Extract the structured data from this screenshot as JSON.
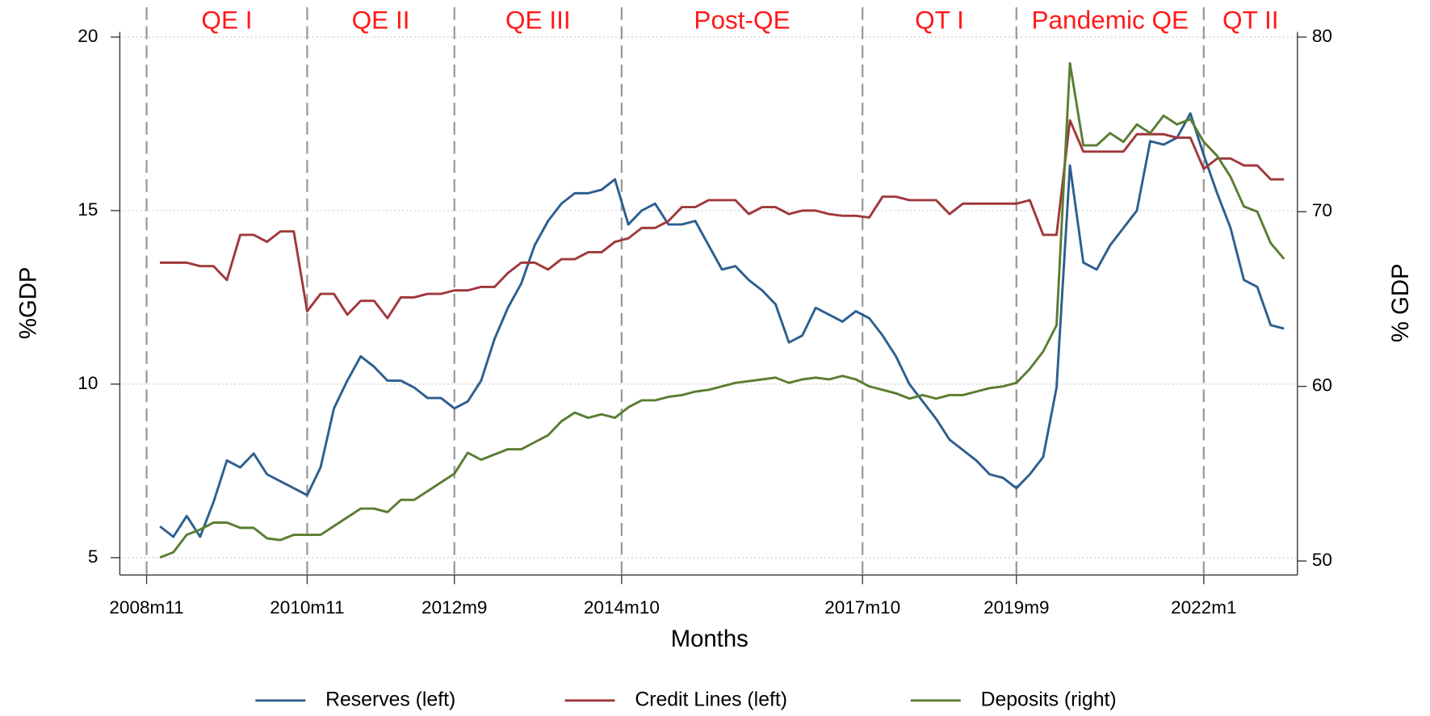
{
  "chart_data": {
    "type": "line",
    "x_label": "Months",
    "y_label": "%GDP",
    "y2_label": "% GDP",
    "x": [
      "2009m1",
      "2009m3",
      "2009m5",
      "2009m7",
      "2009m9",
      "2009m11",
      "2010m1",
      "2010m3",
      "2010m5",
      "2010m7",
      "2010m9",
      "2010m11",
      "2011m1",
      "2011m3",
      "2011m5",
      "2011m7",
      "2011m9",
      "2011m11",
      "2012m1",
      "2012m3",
      "2012m5",
      "2012m7",
      "2012m9",
      "2012m11",
      "2013m1",
      "2013m3",
      "2013m5",
      "2013m7",
      "2013m9",
      "2013m11",
      "2014m1",
      "2014m3",
      "2014m5",
      "2014m7",
      "2014m9",
      "2014m11",
      "2015m1",
      "2015m3",
      "2015m5",
      "2015m7",
      "2015m9",
      "2015m11",
      "2016m1",
      "2016m3",
      "2016m5",
      "2016m7",
      "2016m9",
      "2016m11",
      "2017m1",
      "2017m3",
      "2017m5",
      "2017m7",
      "2017m9",
      "2017m11",
      "2018m1",
      "2018m3",
      "2018m5",
      "2018m7",
      "2018m9",
      "2018m11",
      "2019m1",
      "2019m3",
      "2019m5",
      "2019m7",
      "2019m9",
      "2019m11",
      "2020m1",
      "2020m3",
      "2020m5",
      "2020m7",
      "2020m9",
      "2020m11",
      "2021m1",
      "2021m3",
      "2021m5",
      "2021m7",
      "2021m9",
      "2021m11",
      "2022m1",
      "2022m3",
      "2022m5",
      "2022m7",
      "2022m9",
      "2022m11",
      "2023m1"
    ],
    "series": [
      {
        "name": "Reserves (left)",
        "color": "#2d5f8e",
        "axis": "y",
        "values": [
          5.9,
          5.6,
          6.2,
          5.6,
          6.6,
          7.8,
          7.6,
          8.0,
          7.4,
          7.2,
          7.0,
          6.8,
          7.6,
          9.3,
          10.1,
          10.8,
          10.5,
          10.1,
          10.1,
          9.9,
          9.6,
          9.6,
          9.3,
          9.5,
          10.1,
          11.3,
          12.2,
          12.9,
          14.0,
          14.7,
          15.2,
          15.5,
          15.5,
          15.6,
          15.9,
          14.6,
          15.0,
          15.2,
          14.6,
          14.6,
          14.7,
          14.0,
          13.3,
          13.4,
          13.0,
          12.7,
          12.3,
          11.2,
          11.4,
          12.2,
          12.0,
          11.8,
          12.1,
          11.9,
          11.4,
          10.8,
          10.0,
          9.5,
          9.0,
          8.4,
          8.1,
          7.8,
          7.4,
          7.3,
          7.0,
          7.4,
          7.9,
          9.9,
          16.3,
          13.5,
          13.3,
          14.0,
          14.5,
          15.0,
          17.0,
          16.9,
          17.1,
          17.8,
          16.6,
          15.5,
          14.5,
          13.0,
          12.8,
          11.7,
          11.6
        ]
      },
      {
        "name": "Credit Lines (left)",
        "color": "#a0383c",
        "axis": "y",
        "values": [
          13.5,
          13.5,
          13.5,
          13.4,
          13.4,
          13.0,
          14.3,
          14.3,
          14.1,
          14.4,
          14.4,
          12.1,
          12.6,
          12.6,
          12.0,
          12.4,
          12.4,
          11.9,
          12.5,
          12.5,
          12.6,
          12.6,
          12.7,
          12.7,
          12.8,
          12.8,
          13.2,
          13.5,
          13.5,
          13.3,
          13.6,
          13.6,
          13.8,
          13.8,
          14.1,
          14.2,
          14.5,
          14.5,
          14.7,
          15.1,
          15.1,
          15.3,
          15.3,
          15.3,
          14.9,
          15.1,
          15.1,
          14.9,
          15.0,
          15.0,
          14.9,
          14.85,
          14.85,
          14.8,
          15.4,
          15.4,
          15.3,
          15.3,
          15.3,
          14.9,
          15.2,
          15.2,
          15.2,
          15.2,
          15.2,
          15.3,
          14.3,
          14.3,
          17.6,
          16.7,
          16.7,
          16.7,
          16.7,
          17.2,
          17.2,
          17.2,
          17.1,
          17.1,
          16.2,
          16.5,
          16.5,
          16.3,
          16.3,
          15.9,
          15.9
        ]
      },
      {
        "name": "Deposits (right)",
        "color": "#5a7d32",
        "axis": "y2",
        "values": [
          50.2,
          50.5,
          51.5,
          51.8,
          52.2,
          52.2,
          51.9,
          51.9,
          51.3,
          51.2,
          51.5,
          51.5,
          51.5,
          52.0,
          52.5,
          53.0,
          53.0,
          52.8,
          53.5,
          53.5,
          54.0,
          54.5,
          55.0,
          56.2,
          55.8,
          56.1,
          56.4,
          56.4,
          56.8,
          57.2,
          58.0,
          58.5,
          58.2,
          58.4,
          58.2,
          58.8,
          59.2,
          59.2,
          59.4,
          59.5,
          59.7,
          59.8,
          60.0,
          60.2,
          60.3,
          60.4,
          60.5,
          60.2,
          60.4,
          60.5,
          60.4,
          60.6,
          60.4,
          60.0,
          59.8,
          59.6,
          59.3,
          59.5,
          59.3,
          59.5,
          59.5,
          59.7,
          59.9,
          60.0,
          60.2,
          61.0,
          62.0,
          63.5,
          78.5,
          73.8,
          73.8,
          74.5,
          74.0,
          75.0,
          74.5,
          75.5,
          75.0,
          75.3,
          74.0,
          73.2,
          72.0,
          70.3,
          70.0,
          68.2,
          67.3
        ]
      }
    ],
    "xlim": [
      "2008m7",
      "2023m3"
    ],
    "xticks": [
      "2008m11",
      "2010m11",
      "2012m9",
      "2014m10",
      "2017m10",
      "2019m9",
      "2022m1"
    ],
    "ylim": [
      4.5,
      20.15
    ],
    "yticks": [
      5,
      10,
      15,
      20
    ],
    "y2lim": [
      49.2,
      80.3
    ],
    "y2ticks": [
      50,
      60,
      70,
      80
    ],
    "grid": true,
    "x_lines": "dashed",
    "legend": "bottom",
    "annotations": [
      "QE I",
      "QE II",
      "QE III",
      "Post-QE",
      "QT I",
      "Pandemic QE",
      "QT II"
    ],
    "annotation_color": "#ff1a1a"
  }
}
